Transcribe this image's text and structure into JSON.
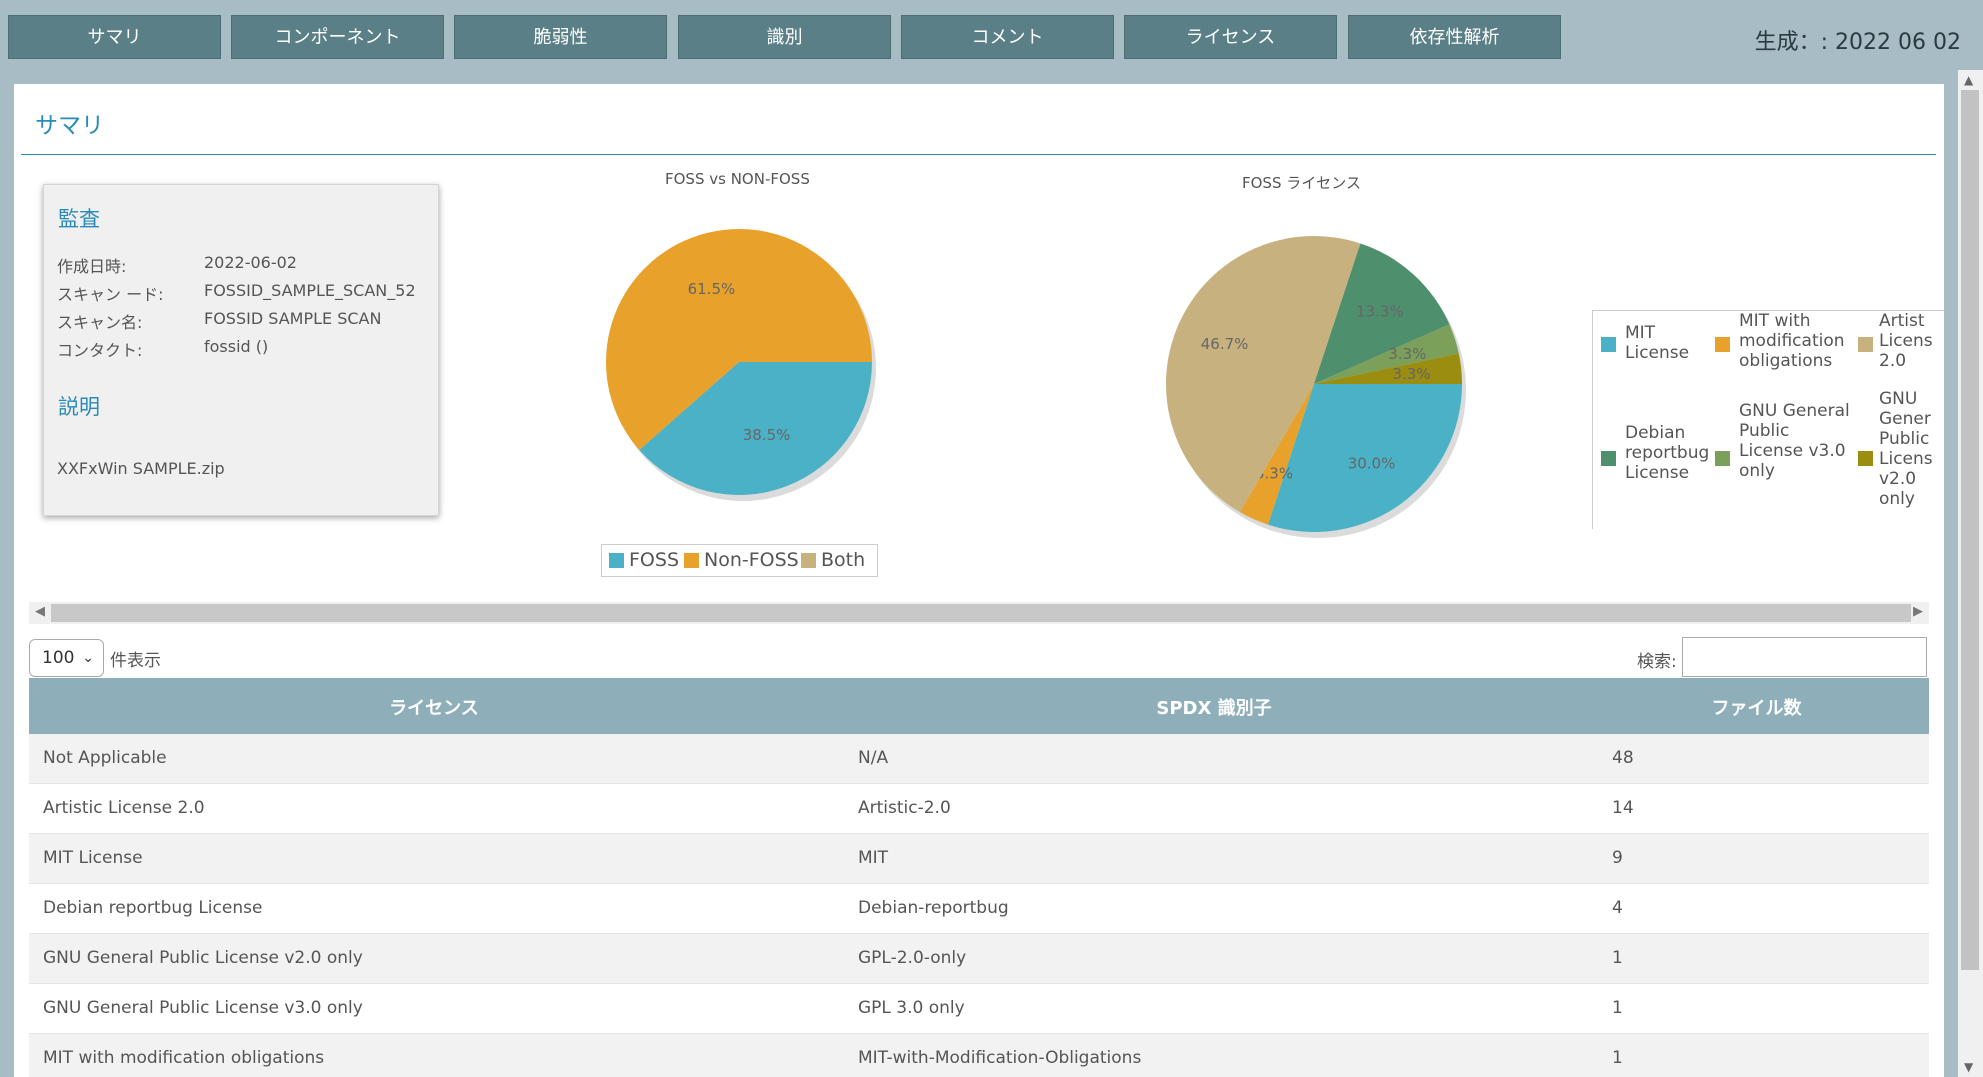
{
  "nav": {
    "items": [
      "サマリ",
      "コンポーネント",
      "脆弱性",
      "識別",
      "コメント",
      "ライセンス",
      "依存性解析"
    ],
    "generated": "生成：: 2022 06 02"
  },
  "page": {
    "title": "サマリ"
  },
  "audit": {
    "heading": "監査",
    "fields": [
      {
        "label": "作成日時:",
        "value": "2022-06-02"
      },
      {
        "label": "スキャン ード:",
        "value": "FOSSID_SAMPLE_SCAN_52"
      },
      {
        "label": "スキャン名:",
        "value": "FOSSID SAMPLE SCAN"
      },
      {
        "label": "コンタクト:",
        "value": "fossid ()"
      }
    ],
    "desc_heading": "説明",
    "desc_value": "XXFxWin SAMPLE.zip"
  },
  "colors": {
    "foss": "#4ab1c6",
    "nonfoss": "#e8a22c",
    "both": "#c7b27f",
    "debian": "#4e8f6e",
    "gpl3": "#7aa05a",
    "gpl2": "#9b8d10"
  },
  "chart_data": [
    {
      "type": "pie",
      "title": "FOSS vs NON-FOSS",
      "labels": [
        "FOSS",
        "Non-FOSS",
        "Both"
      ],
      "values": [
        38.5,
        61.5,
        0
      ],
      "value_labels": [
        "38.5%",
        "61.5%",
        ""
      ],
      "colors": [
        "#4ab1c6",
        "#e8a22c",
        "#c7b27f"
      ],
      "legend": "bottom"
    },
    {
      "type": "pie",
      "title": "FOSS ライセンス",
      "labels": [
        "MIT License",
        "MIT with modification obligations",
        "Artistic License 2.0",
        "Debian reportbug License",
        "GNU General Public License v3.0 only",
        "GNU General Public License v2.0 only"
      ],
      "values": [
        30.0,
        3.3,
        46.7,
        13.3,
        3.3,
        3.3
      ],
      "value_labels": [
        "30.0%",
        "3.3%",
        "46.7%",
        "13.3%",
        "3.3%",
        "3.3%"
      ],
      "colors": [
        "#4ab1c6",
        "#e8a22c",
        "#c7b27f",
        "#4e8f6e",
        "#7aa05a",
        "#9b8d10"
      ],
      "legend": "right"
    }
  ],
  "legend2": {
    "mit": "MIT License",
    "mitmod": "MIT with modification obligations",
    "artistic": "Artist Licens 2.0",
    "debian": "Debian reportbug License",
    "gpl3": "GNU General Public License v3.0 only",
    "gpl2": "GNU Gener Public Licens v2.0 only"
  },
  "table": {
    "page_size": "100",
    "page_size_label": "件表示",
    "search_label": "検索:",
    "headers": [
      "ライセンス",
      "SPDX 識別子",
      "ファイル数"
    ],
    "rows": [
      [
        "Not Applicable",
        "N/A",
        "48"
      ],
      [
        "Artistic License 2.0",
        "Artistic-2.0",
        "14"
      ],
      [
        "MIT License",
        "MIT",
        "9"
      ],
      [
        "Debian reportbug License",
        "Debian-reportbug",
        "4"
      ],
      [
        "GNU General Public License v2.0 only",
        "GPL-2.0-only",
        "1"
      ],
      [
        "GNU General Public License v3.0 only",
        "GPL 3.0 only",
        "1"
      ],
      [
        "MIT with modification obligations",
        "MIT-with-Modification-Obligations",
        "1"
      ]
    ]
  }
}
